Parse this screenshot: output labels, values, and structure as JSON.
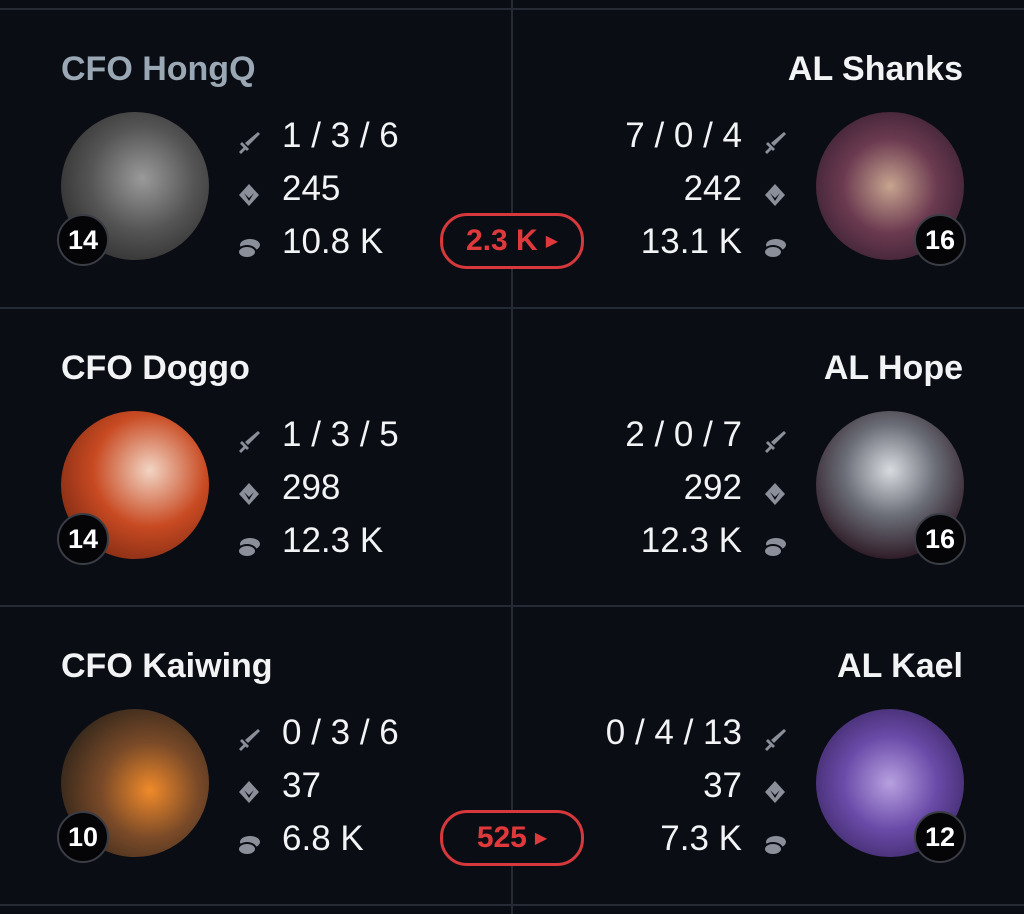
{
  "colors": {
    "background": "#0b0d14",
    "divider": "#262a35",
    "gold_diff": "#d6383b",
    "icon": "#8a8f99",
    "muted_name": "#9aa7b4"
  },
  "icons": {
    "kda": "sword-icon",
    "cs": "gem-icon",
    "gold": "coin-stack-icon",
    "diff": "play-triangle-icon"
  },
  "rows": [
    {
      "left": {
        "name": "CFO HongQ",
        "level": "14",
        "kda": "1 / 3 / 6",
        "cs": "245",
        "gold": "10.8 K",
        "muted": true
      },
      "right": {
        "name": "AL Shanks",
        "level": "16",
        "kda": "7 / 0 / 4",
        "cs": "242",
        "gold": "13.1 K"
      },
      "gold_diff": "2.3 K"
    },
    {
      "left": {
        "name": "CFO Doggo",
        "level": "14",
        "kda": "1 / 3 / 5",
        "cs": "298",
        "gold": "12.3 K"
      },
      "right": {
        "name": "AL Hope",
        "level": "16",
        "kda": "2 / 0 / 7",
        "cs": "292",
        "gold": "12.3 K"
      },
      "gold_diff": null
    },
    {
      "left": {
        "name": "CFO Kaiwing",
        "level": "10",
        "kda": "0 / 3 / 6",
        "cs": "37",
        "gold": "6.8 K"
      },
      "right": {
        "name": "AL Kael",
        "level": "12",
        "kda": "0 / 4 / 13",
        "cs": "37",
        "gold": "7.3 K"
      },
      "gold_diff": "525"
    }
  ]
}
